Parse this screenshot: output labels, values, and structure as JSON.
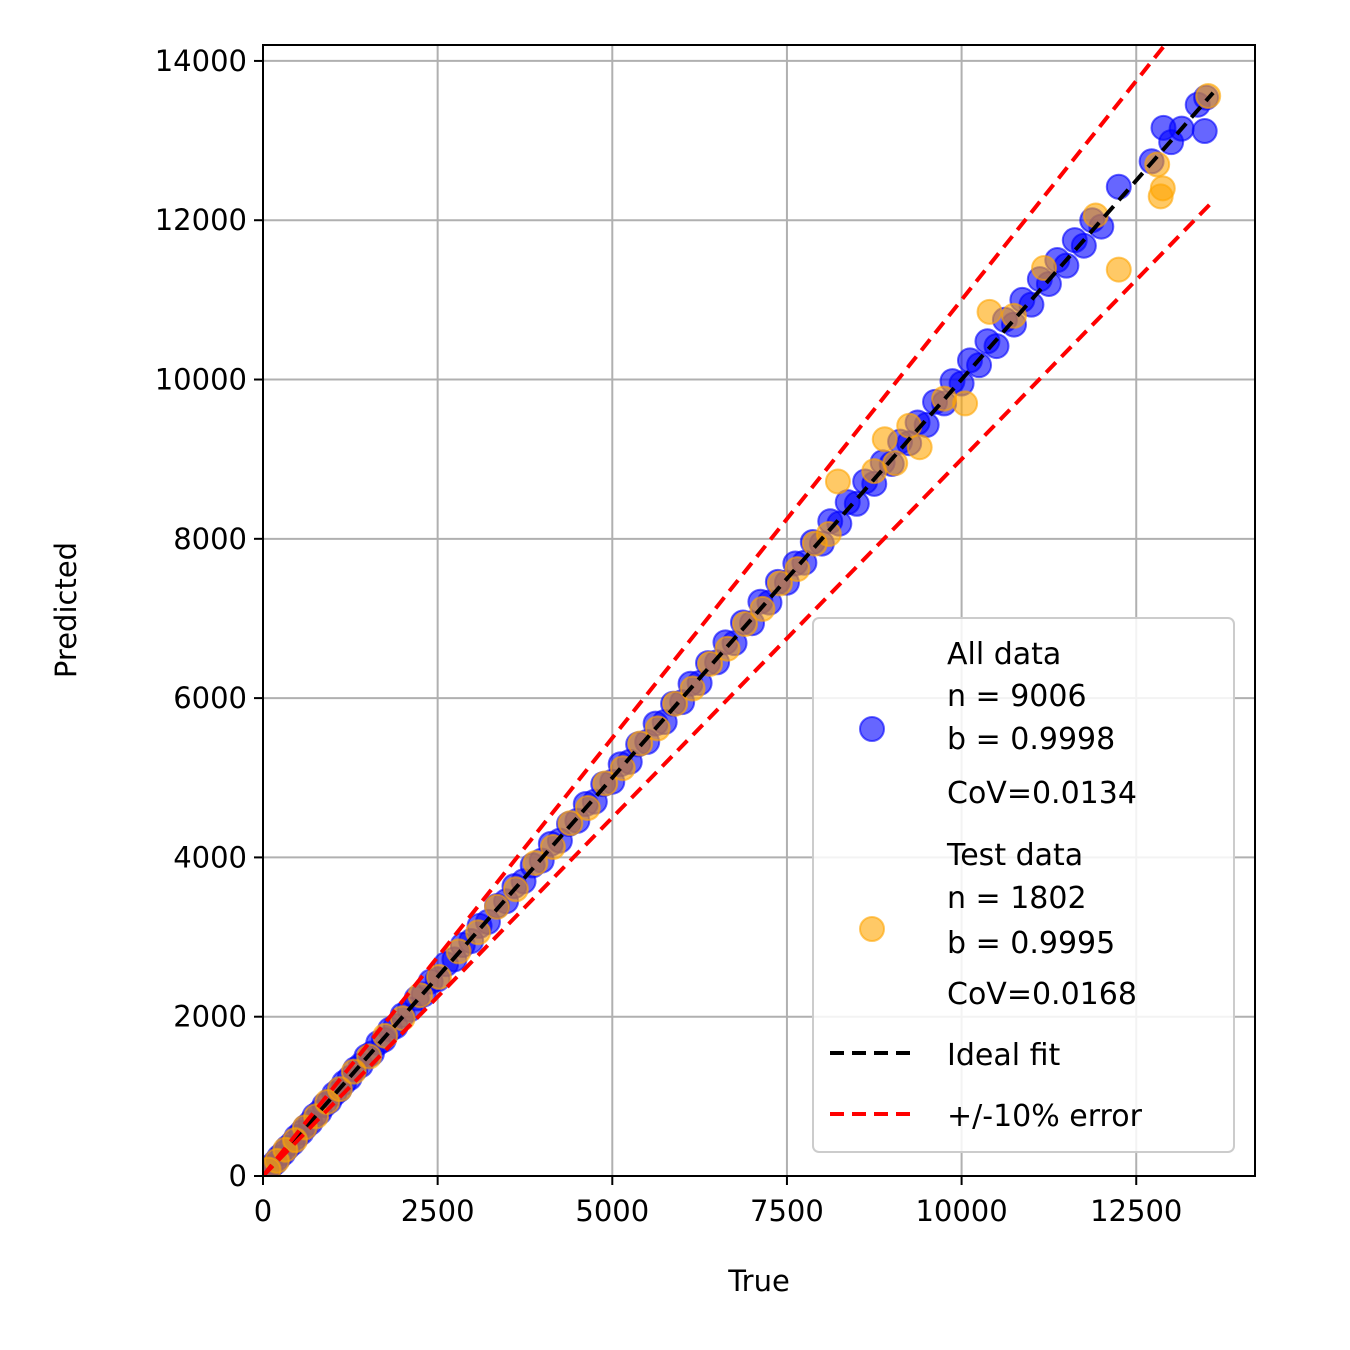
{
  "chart_data": {
    "type": "scatter",
    "title": "",
    "xlabel": "True",
    "ylabel": "Predicted",
    "xlim": [
      0,
      14200
    ],
    "ylim": [
      0,
      14200
    ],
    "xticks": [
      0,
      2500,
      5000,
      7500,
      10000,
      12500
    ],
    "xtick_labels": [
      "0",
      "2500",
      "5000",
      "7500",
      "10000",
      "12500"
    ],
    "yticks": [
      0,
      2000,
      4000,
      6000,
      8000,
      10000,
      12000,
      14000
    ],
    "ytick_labels": [
      "0",
      "2000",
      "4000",
      "6000",
      "8000",
      "10000",
      "12000",
      "14000"
    ],
    "grid": true,
    "legend_position": "lower-right",
    "colors": {
      "all": "#0000ff",
      "test": "#ffa500",
      "ideal": "#000000",
      "error": "#ff0000"
    },
    "series": [
      {
        "name": "All data",
        "stats": [
          "n = 9006",
          "b = 0.9998",
          "CoV=0.0134"
        ],
        "color": "#0000ff",
        "points": [
          [
            60,
            60
          ],
          [
            110,
            115
          ],
          [
            170,
            165
          ],
          [
            230,
            235
          ],
          [
            290,
            285
          ],
          [
            350,
            355
          ],
          [
            420,
            410
          ],
          [
            480,
            490
          ],
          [
            550,
            545
          ],
          [
            610,
            615
          ],
          [
            680,
            670
          ],
          [
            740,
            755
          ],
          [
            810,
            800
          ],
          [
            880,
            890
          ],
          [
            950,
            940
          ],
          [
            1020,
            1030
          ],
          [
            1090,
            1080
          ],
          [
            1160,
            1170
          ],
          [
            1240,
            1230
          ],
          [
            1320,
            1340
          ],
          [
            1400,
            1390
          ],
          [
            1480,
            1500
          ],
          [
            1560,
            1540
          ],
          [
            1650,
            1670
          ],
          [
            1730,
            1710
          ],
          [
            1820,
            1840
          ],
          [
            1900,
            1880
          ],
          [
            2000,
            2020
          ],
          [
            2100,
            2090
          ],
          [
            2200,
            2230
          ],
          [
            2300,
            2280
          ],
          [
            2400,
            2440
          ],
          [
            2500,
            2470
          ],
          [
            2620,
            2660
          ],
          [
            2740,
            2720
          ],
          [
            2860,
            2900
          ],
          [
            2980,
            2950
          ],
          [
            3100,
            3140
          ],
          [
            3220,
            3190
          ],
          [
            3350,
            3390
          ],
          [
            3480,
            3450
          ],
          [
            3600,
            3640
          ],
          [
            3730,
            3700
          ],
          [
            3860,
            3900
          ],
          [
            3990,
            3960
          ],
          [
            4120,
            4170
          ],
          [
            4250,
            4210
          ],
          [
            4380,
            4420
          ],
          [
            4500,
            4460
          ],
          [
            4620,
            4670
          ],
          [
            4750,
            4700
          ],
          [
            4870,
            4920
          ],
          [
            5000,
            4950
          ],
          [
            5120,
            5170
          ],
          [
            5250,
            5200
          ],
          [
            5370,
            5420
          ],
          [
            5500,
            5450
          ],
          [
            5620,
            5680
          ],
          [
            5750,
            5700
          ],
          [
            5870,
            5930
          ],
          [
            6000,
            5950
          ],
          [
            6120,
            6180
          ],
          [
            6250,
            6190
          ],
          [
            6370,
            6440
          ],
          [
            6500,
            6450
          ],
          [
            6620,
            6700
          ],
          [
            6750,
            6690
          ],
          [
            6870,
            6950
          ],
          [
            7000,
            6940
          ],
          [
            7120,
            7210
          ],
          [
            7250,
            7200
          ],
          [
            7370,
            7460
          ],
          [
            7500,
            7450
          ],
          [
            7620,
            7690
          ],
          [
            7750,
            7700
          ],
          [
            7870,
            7960
          ],
          [
            8000,
            7940
          ],
          [
            8120,
            8220
          ],
          [
            8250,
            8190
          ],
          [
            8370,
            8460
          ],
          [
            8500,
            8440
          ],
          [
            8620,
            8720
          ],
          [
            8750,
            8690
          ],
          [
            8870,
            8960
          ],
          [
            9000,
            8940
          ],
          [
            9120,
            9220
          ],
          [
            9250,
            9200
          ],
          [
            9370,
            9460
          ],
          [
            9500,
            9430
          ],
          [
            9620,
            9720
          ],
          [
            9750,
            9700
          ],
          [
            9870,
            9980
          ],
          [
            10000,
            9950
          ],
          [
            10120,
            10240
          ],
          [
            10250,
            10180
          ],
          [
            10370,
            10480
          ],
          [
            10500,
            10420
          ],
          [
            10620,
            10750
          ],
          [
            10750,
            10690
          ],
          [
            10870,
            11000
          ],
          [
            11000,
            10940
          ],
          [
            11120,
            11260
          ],
          [
            11250,
            11200
          ],
          [
            11370,
            11500
          ],
          [
            11500,
            11430
          ],
          [
            11620,
            11750
          ],
          [
            11750,
            11680
          ],
          [
            11870,
            12000
          ],
          [
            12000,
            11920
          ],
          [
            12250,
            12420
          ],
          [
            12720,
            12740
          ],
          [
            12890,
            13160
          ],
          [
            13000,
            12980
          ],
          [
            13150,
            13150
          ],
          [
            13380,
            13450
          ],
          [
            13480,
            13120
          ],
          [
            13500,
            13540
          ]
        ]
      },
      {
        "name": "Test data",
        "stats": [
          "n = 1802",
          "b = 0.9995",
          "CoV=0.0168"
        ],
        "color": "#ffa500",
        "points": [
          [
            80,
            80
          ],
          [
            200,
            190
          ],
          [
            320,
            330
          ],
          [
            460,
            450
          ],
          [
            600,
            610
          ],
          [
            760,
            750
          ],
          [
            920,
            930
          ],
          [
            1100,
            1090
          ],
          [
            1300,
            1310
          ],
          [
            1520,
            1500
          ],
          [
            1750,
            1760
          ],
          [
            2000,
            1980
          ],
          [
            2250,
            2270
          ],
          [
            2520,
            2500
          ],
          [
            2800,
            2820
          ],
          [
            3080,
            3060
          ],
          [
            3350,
            3380
          ],
          [
            3620,
            3600
          ],
          [
            3900,
            3930
          ],
          [
            4150,
            4130
          ],
          [
            4400,
            4430
          ],
          [
            4650,
            4620
          ],
          [
            4900,
            4930
          ],
          [
            5150,
            5120
          ],
          [
            5400,
            5430
          ],
          [
            5650,
            5620
          ],
          [
            5900,
            5930
          ],
          [
            6150,
            6120
          ],
          [
            6400,
            6430
          ],
          [
            6650,
            6620
          ],
          [
            6900,
            6930
          ],
          [
            7150,
            7120
          ],
          [
            7400,
            7440
          ],
          [
            7650,
            7620
          ],
          [
            7900,
            7940
          ],
          [
            8100,
            8060
          ],
          [
            8230,
            8720
          ],
          [
            8750,
            8850
          ],
          [
            8900,
            9250
          ],
          [
            9050,
            8950
          ],
          [
            9250,
            9420
          ],
          [
            9400,
            9150
          ],
          [
            9750,
            9760
          ],
          [
            10050,
            9700
          ],
          [
            10400,
            10850
          ],
          [
            10750,
            10800
          ],
          [
            11180,
            11400
          ],
          [
            11920,
            12060
          ],
          [
            12250,
            11380
          ],
          [
            12800,
            12700
          ],
          [
            12850,
            12300
          ],
          [
            12880,
            12400
          ],
          [
            13530,
            13560
          ]
        ]
      }
    ],
    "lines": [
      {
        "name": "Ideal fit",
        "color": "#000000",
        "slope": 1.0,
        "x": [
          0,
          13600
        ]
      },
      {
        "name": "+/-10% error",
        "color": "#ff0000",
        "slope": 1.1,
        "x": [
          0,
          13600
        ]
      },
      {
        "name": "+/-10% error",
        "color": "#ff0000",
        "slope": 0.9,
        "x": [
          0,
          13600
        ]
      }
    ]
  },
  "legend": {
    "items": [
      {
        "label": "All data",
        "stats": [
          "n = 9006",
          "b = 0.9998",
          "CoV=0.0134"
        ],
        "kind": "marker",
        "color": "#0000ff"
      },
      {
        "label": "Test data",
        "stats": [
          "n = 1802",
          "b = 0.9995",
          "CoV=0.0168"
        ],
        "kind": "marker",
        "color": "#ffa500"
      },
      {
        "label": "Ideal fit",
        "kind": "line",
        "color": "#000000"
      },
      {
        "label": "+/-10% error",
        "kind": "line",
        "color": "#ff0000"
      }
    ]
  }
}
